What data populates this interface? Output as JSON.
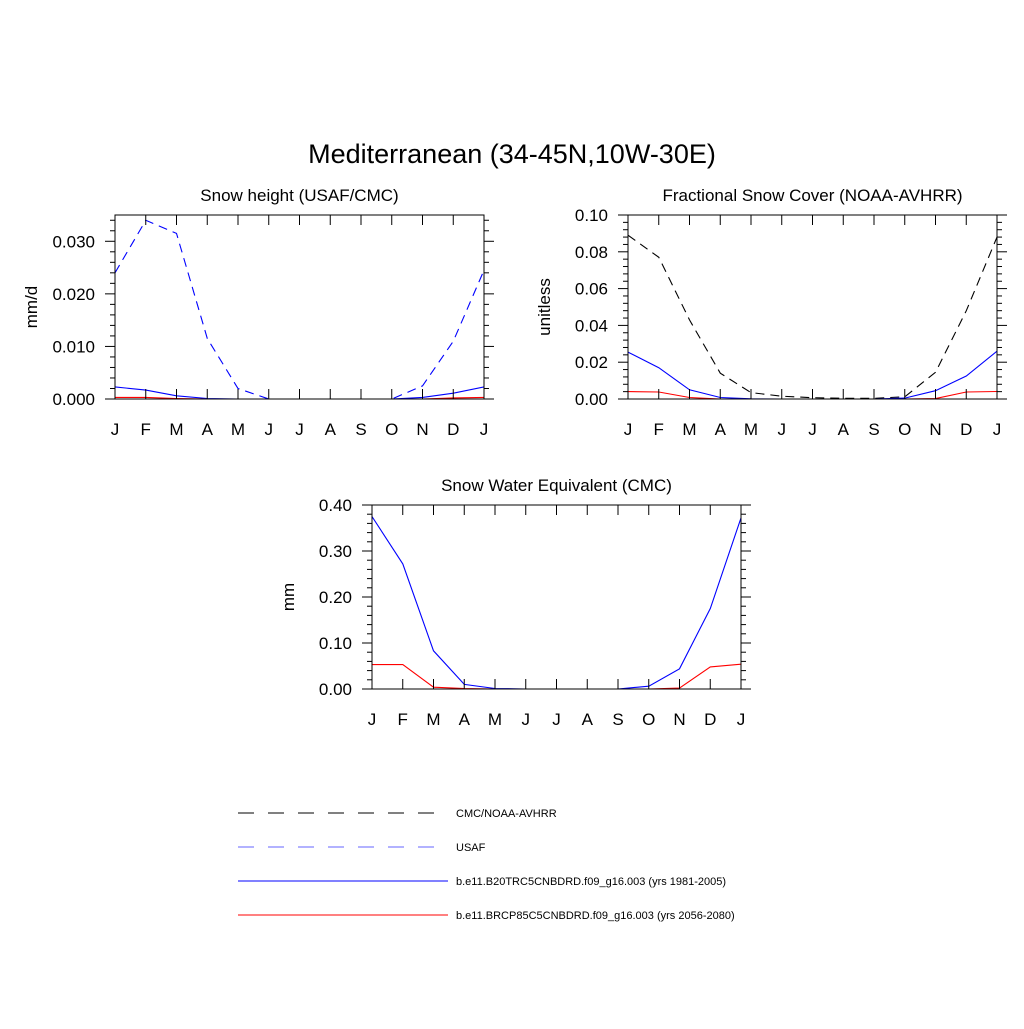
{
  "figure_title": "Mediterranean (34-45N,10W-30E)",
  "months": [
    "J",
    "F",
    "M",
    "A",
    "M",
    "J",
    "J",
    "A",
    "S",
    "O",
    "N",
    "D",
    "J"
  ],
  "chart_data": [
    {
      "type": "line",
      "title": "Snow height (USAF/CMC)",
      "xlabel": "",
      "ylabel": "mm/d",
      "ylim": [
        0,
        0.035
      ],
      "yticks": [
        0,
        0.01,
        0.02,
        0.03
      ],
      "ytick_labels": [
        "0.000",
        "0.010",
        "0.020",
        "0.030"
      ],
      "categories": [
        "J",
        "F",
        "M",
        "A",
        "M",
        "J",
        "J",
        "A",
        "S",
        "O",
        "N",
        "D",
        "J"
      ],
      "series": [
        {
          "name": "USAF",
          "color": "#0000ff",
          "dash": "dashed",
          "values": [
            0.024,
            0.034,
            0.0315,
            0.0115,
            0.002,
            0,
            0,
            0,
            0,
            0,
            0.0025,
            0.011,
            0.0245
          ]
        },
        {
          "name": "b.e11.B20TRC5CNBDRD.f09_g16.003 (yrs 1981-2005)",
          "color": "#0000ff",
          "dash": "solid",
          "values": [
            0.0023,
            0.0017,
            0.0006,
            0.0001,
            0,
            0,
            0,
            0,
            0,
            0,
            0.0003,
            0.0011,
            0.0023
          ]
        },
        {
          "name": "b.e11.BRCP85C5CNBDRD.f09_g16.003 (yrs 2056-2080)",
          "color": "#ff0000",
          "dash": "solid",
          "values": [
            0.0003,
            0.0003,
            0.0001,
            0,
            0,
            0,
            0,
            0,
            0,
            0,
            0,
            0.0002,
            0.0003
          ]
        }
      ]
    },
    {
      "type": "line",
      "title": "Fractional Snow Cover (NOAA-AVHRR)",
      "xlabel": "",
      "ylabel": "unitless",
      "ylim": [
        0,
        0.1
      ],
      "yticks": [
        0,
        0.02,
        0.04,
        0.06,
        0.08,
        0.1
      ],
      "ytick_labels": [
        "0.00",
        "0.02",
        "0.04",
        "0.06",
        "0.08",
        "0.10"
      ],
      "categories": [
        "J",
        "F",
        "M",
        "A",
        "M",
        "J",
        "J",
        "A",
        "S",
        "O",
        "N",
        "D",
        "J"
      ],
      "series": [
        {
          "name": "CMC/NOAA-AVHRR",
          "color": "#000000",
          "dash": "dashed",
          "values": [
            0.089,
            0.077,
            0.043,
            0.014,
            0.0035,
            0.0015,
            0.0007,
            0.0004,
            0.0004,
            0.0012,
            0.0145,
            0.048,
            0.088
          ]
        },
        {
          "name": "b.e11.B20TRC5CNBDRD.f09_g16.003 (yrs 1981-2005)",
          "color": "#0000ff",
          "dash": "solid",
          "values": [
            0.0255,
            0.017,
            0.005,
            0.0008,
            0.0001,
            0,
            0,
            0,
            0,
            0.0005,
            0.0045,
            0.0125,
            0.026
          ]
        },
        {
          "name": "b.e11.BRCP85C5CNBDRD.f09_g16.003 (yrs 2056-2080)",
          "color": "#ff0000",
          "dash": "solid",
          "values": [
            0.004,
            0.0038,
            0.0008,
            0,
            0,
            0,
            0,
            0,
            0,
            0,
            0.0002,
            0.0038,
            0.0041
          ]
        }
      ]
    },
    {
      "type": "line",
      "title": "Snow Water Equivalent (CMC)",
      "xlabel": "",
      "ylabel": "mm",
      "ylim": [
        0,
        0.4
      ],
      "yticks": [
        0,
        0.1,
        0.2,
        0.3,
        0.4
      ],
      "ytick_labels": [
        "0.00",
        "0.10",
        "0.20",
        "0.30",
        "0.40"
      ],
      "categories": [
        "J",
        "F",
        "M",
        "A",
        "M",
        "J",
        "J",
        "A",
        "S",
        "O",
        "N",
        "D",
        "J"
      ],
      "series": [
        {
          "name": "CMC/NOAA-AVHRR",
          "color": "#000000",
          "dash": "dashed",
          "values": [
            0,
            0,
            0,
            0,
            0,
            0,
            0,
            0,
            0,
            0,
            0,
            0,
            0
          ]
        },
        {
          "name": "b.e11.B20TRC5CNBDRD.f09_g16.003 (yrs 1981-2005)",
          "color": "#0000ff",
          "dash": "solid",
          "values": [
            0.375,
            0.272,
            0.083,
            0.01,
            0.001,
            0,
            0,
            0,
            0,
            0.006,
            0.044,
            0.175,
            0.372
          ]
        },
        {
          "name": "b.e11.BRCP85C5CNBDRD.f09_g16.003 (yrs 2056-2080)",
          "color": "#ff0000",
          "dash": "solid",
          "values": [
            0.053,
            0.053,
            0.004,
            0.001,
            0,
            0,
            0,
            0,
            0,
            0,
            0.002,
            0.048,
            0.054
          ]
        }
      ]
    }
  ],
  "legend": [
    {
      "label": "CMC/NOAA-AVHRR",
      "color": "#000000",
      "dash": "dashed"
    },
    {
      "label": "USAF",
      "color": "#6666ff",
      "dash": "dashed"
    },
    {
      "label": "b.e11.B20TRC5CNBDRD.f09_g16.003 (yrs 1981-2005)",
      "color": "#0000ff",
      "dash": "solid"
    },
    {
      "label": "b.e11.BRCP85C5CNBDRD.f09_g16.003 (yrs 2056-2080)",
      "color": "#ff0000",
      "dash": "solid"
    }
  ]
}
